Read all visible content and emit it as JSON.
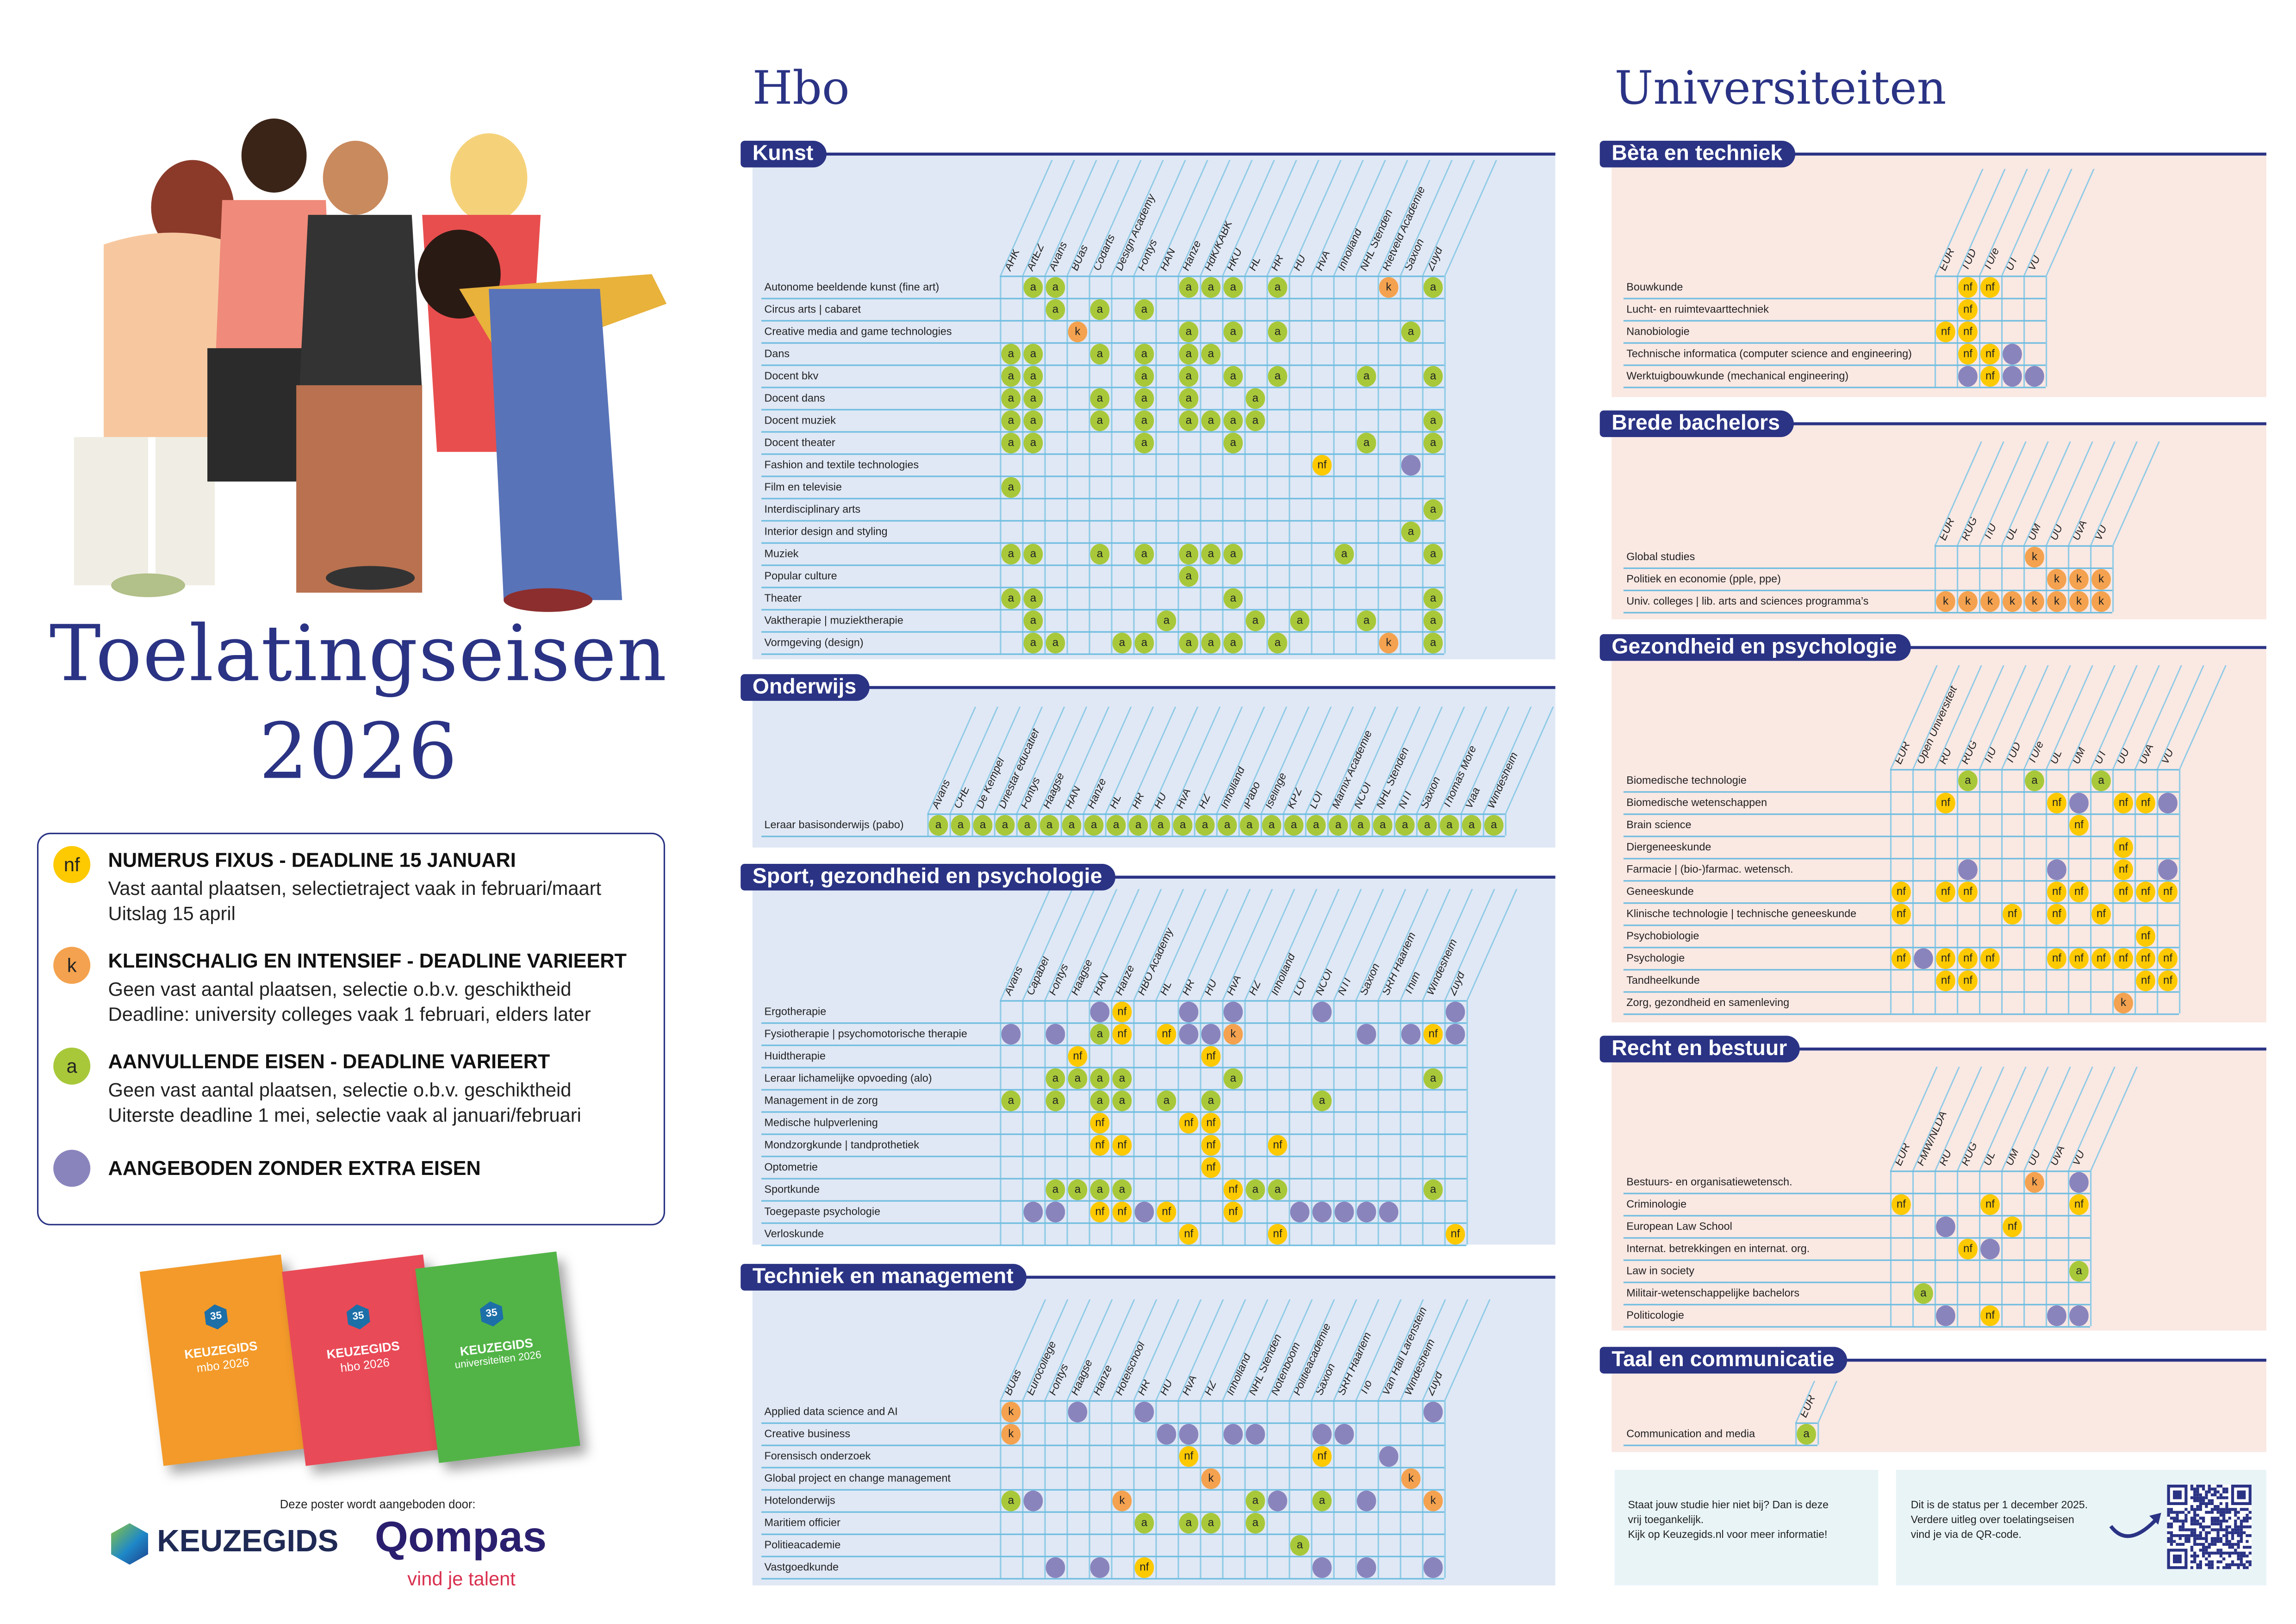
{
  "poster": {
    "title_line1": "Toelatingseisen",
    "title_line2": "2026",
    "hbo_heading": "Hbo",
    "uni_heading": "Universiteiten"
  },
  "colors": {
    "navy": "#2a3384",
    "nf": "#fdc900",
    "k": "#f4a24f",
    "a": "#a8c83a",
    "none": "#8a84bd",
    "hbo_panel": "#e0e8f5",
    "uni_panel": "#fae8e3"
  },
  "legend": [
    {
      "mark": "nf",
      "heading": "NUMERUS FIXUS - DEADLINE 15 JANUARI",
      "lines": [
        "Vast aantal plaatsen, selectietraject vaak in februari/maart",
        "Uitslag 15 april"
      ]
    },
    {
      "mark": "k",
      "heading": "KLEINSCHALIG EN INTENSIEF - DEADLINE VARIEERT",
      "lines": [
        "Geen vast aantal plaatsen, selectie o.b.v. geschiktheid",
        "Deadline: university colleges vaak 1 februari, elders later"
      ]
    },
    {
      "mark": "a",
      "heading": "AANVULLENDE EISEN - DEADLINE VARIEERT",
      "lines": [
        "Geen vast aantal plaatsen, selectie o.b.v. geschiktheid",
        "Uiterste deadline 1 mei, selectie vaak al januari/februari"
      ]
    },
    {
      "mark": "",
      "heading": "AANGEBODEN ZONDER EXTRA EISEN",
      "lines": []
    }
  ],
  "cell_codes": {
    "n": "nf",
    "k": "k",
    "a": "a",
    "p": "",
    ".": null
  },
  "hbo_sections": [
    {
      "title": "Kunst",
      "columns": [
        "AHK",
        "ArtEZ",
        "Avans",
        "BUas",
        "Codarts",
        "Design Academy",
        "Fontys",
        "HAN",
        "Hanze",
        "HdK/KABK",
        "HKU",
        "HL",
        "HR",
        "HU",
        "HvA",
        "Inholland",
        "NHL Stenden",
        "Rietveld Academie",
        "Saxion",
        "Zuyd"
      ],
      "rows": [
        {
          "label": "Autonome beeldende kunst (fine art)",
          "cells": ".aa.....aaa.a....k.a"
        },
        {
          "label": "Circus arts | cabaret",
          "cells": "..a.a.a............."
        },
        {
          "label": "Creative media and game technologies",
          "cells": "...k....a.a.a.....a."
        },
        {
          "label": "Dans",
          "cells": "aa..a.a.aa.........."
        },
        {
          "label": "Docent bkv",
          "cells": "aa....a.a.a.a...a..a"
        },
        {
          "label": "Docent dans",
          "cells": "aa..a.a.a..a........"
        },
        {
          "label": "Docent muziek",
          "cells": "aa..a.a.aaaa.......a"
        },
        {
          "label": "Docent theater",
          "cells": "aa....a...a.....a..a"
        },
        {
          "label": "Fashion and textile technologies",
          "cells": "..............n...p."
        },
        {
          "label": "Film en televisie",
          "cells": "a..................."
        },
        {
          "label": "Interdisciplinary arts",
          "cells": "...................a"
        },
        {
          "label": "Interior design and styling",
          "cells": "..................a."
        },
        {
          "label": "Muziek",
          "cells": "aa..a.a.aaa....a...a"
        },
        {
          "label": "Popular culture",
          "cells": "........a..........."
        },
        {
          "label": "Theater",
          "cells": "aa........a........a"
        },
        {
          "label": "Vaktherapie | muziektherapie",
          "cells": ".a.....a...a.a..a..a"
        },
        {
          "label": "Vormgeving (design)",
          "cells": ".aa..aa.aaa.a....k.a"
        }
      ]
    },
    {
      "title": "Onderwijs",
      "columns": [
        "Avans",
        "CHE",
        "De Kempel",
        "Driestar educatief",
        "Fontys",
        "Haagse",
        "HAN",
        "Hanze",
        "HL",
        "HR",
        "HU",
        "HvA",
        "HZ",
        "Inholland",
        "iPabo",
        "Iselinge",
        "KPZ",
        "LOI",
        "Marnix Academie",
        "NCOI",
        "NHL Stenden",
        "NTI",
        "Saxion",
        "Thomas More",
        "Viaa",
        "Windesheim"
      ],
      "rows": [
        {
          "label": "Leraar basisonderwijs (pabo)",
          "cells": "aaaaaaaaaaaaaaaaaaaaaaaaaa"
        }
      ]
    },
    {
      "title": "Sport, gezondheid en psychologie",
      "columns": [
        "Avans",
        "Capabel",
        "Fontys",
        "Haagse",
        "HAN",
        "Hanze",
        "HBO Academy",
        "HL",
        "HR",
        "HU",
        "HvA",
        "HZ",
        "Inholland",
        "LOI",
        "NCOI",
        "NTI",
        "Saxion",
        "SRH Haarlem",
        "Thim",
        "Windesheim",
        "Zuyd"
      ],
      "rows": [
        {
          "label": "Ergotherapie",
          "cells": "....pn..p.p...p.....p"
        },
        {
          "label": "Fysiotherapie | psychomotorische therapie",
          "cells": "p.p.an.nppk.....p.pnp"
        },
        {
          "label": "Huidtherapie",
          "cells": "...n.....n..........."
        },
        {
          "label": "Leraar lichamelijke opvoeding (alo)",
          "cells": "..aaaa....a........a."
        },
        {
          "label": "Management in de zorg",
          "cells": "a.a.aa.a.a....a......"
        },
        {
          "label": "Medische hulpverlening",
          "cells": "....n...nn..........."
        },
        {
          "label": "Mondzorgkunde | tandprothetiek",
          "cells": "....nn...n..n........"
        },
        {
          "label": "Optometrie",
          "cells": ".........n..........."
        },
        {
          "label": "Sportkunde",
          "cells": "..aaaa....naa......a."
        },
        {
          "label": "Toegepaste psychologie",
          "cells": ".pp.nnpn..n..ppppp..."
        },
        {
          "label": "Verloskunde",
          "cells": "........n...n.......n"
        }
      ]
    },
    {
      "title": "Techniek en management",
      "columns": [
        "BUas",
        "Eurocollege",
        "Fontys",
        "Haagse",
        "Hanze",
        "Hotelschool",
        "HR",
        "HU",
        "HvA",
        "HZ",
        "Inholland",
        "NHL Stenden",
        "Notenboom",
        "Politieacademie",
        "Saxion",
        "SRH Haarlem",
        "Tio",
        "Van Hall Larenstein",
        "Windesheim",
        "Zuyd"
      ],
      "rows": [
        {
          "label": "Applied data science and AI",
          "cells": "k..p..p............p"
        },
        {
          "label": "Creative business",
          "cells": "k......pp.pp..pp...."
        },
        {
          "label": "Forensisch onderzoek",
          "cells": "........n.....n..p.."
        },
        {
          "label": "Global project en change management",
          "cells": ".........k........k."
        },
        {
          "label": "Hotelonderwijs",
          "cells": "ap...k.....ap.a.p..k"
        },
        {
          "label": "Maritiem officier",
          "cells": "......a.aa.a........"
        },
        {
          "label": "Politieacademie",
          "cells": ".............a......"
        },
        {
          "label": "Vastgoedkunde",
          "cells": "..p.p.n.......p.p..p"
        }
      ]
    }
  ],
  "uni_sections": [
    {
      "title": "Bèta en techniek",
      "columns": [
        "EUR",
        "TUD",
        "TU/e",
        "UT",
        "VU"
      ],
      "rows": [
        {
          "label": "Bouwkunde",
          "cells": ".nn.."
        },
        {
          "label": "Lucht- en ruimtevaarttechniek",
          "cells": ".n..."
        },
        {
          "label": "Nanobiologie",
          "cells": "nn..."
        },
        {
          "label": "Technische informatica (computer science and engineering)",
          "cells": ".nnp."
        },
        {
          "label": "Werktuigbouwkunde (mechanical engineering)",
          "cells": ".pnpp"
        }
      ]
    },
    {
      "title": "Brede bachelors",
      "columns": [
        "EUR",
        "RUG",
        "TiU",
        "UL",
        "UM",
        "UU",
        "UvA",
        "VU"
      ],
      "rows": [
        {
          "label": "Global studies",
          "cells": "....k..."
        },
        {
          "label": "Politiek en economie (pple, ppe)",
          "cells": ".....kkk"
        },
        {
          "label": "Univ. colleges | lib. arts and sciences programma’s",
          "cells": "kkkkkkkk"
        }
      ]
    },
    {
      "title": "Gezondheid en psychologie",
      "columns": [
        "EUR",
        "Open Universiteit",
        "RU",
        "RUG",
        "TiU",
        "TUD",
        "TU/e",
        "UL",
        "UM",
        "UT",
        "UU",
        "UvA",
        "VU"
      ],
      "rows": [
        {
          "label": "Biomedische technologie",
          "cells": "...a..a..a..."
        },
        {
          "label": "Biomedische wetenschappen",
          "cells": "..n....np.nnp"
        },
        {
          "label": "Brain science",
          "cells": "........n...."
        },
        {
          "label": "Diergeneeskunde",
          "cells": "..........n.."
        },
        {
          "label": "Farmacie | (bio-)farmac. wetensch.",
          "cells": "...p...p..n.p"
        },
        {
          "label": "Geneeskunde",
          "cells": "n.nn...nn.nnn"
        },
        {
          "label": "Klinische technologie | technische geneeskunde",
          "cells": "n....n.n.n..."
        },
        {
          "label": "Psychobiologie",
          "cells": "...........n."
        },
        {
          "label": "Psychologie",
          "cells": "npnnn..nnnnnn"
        },
        {
          "label": "Tandheelkunde",
          "cells": "..nn.......nn"
        },
        {
          "label": "Zorg, gezondheid en samenleving",
          "cells": "..........k.."
        }
      ]
    },
    {
      "title": "Recht en bestuur",
      "columns": [
        "EUR",
        "FMW/NLDA",
        "RU",
        "RUG",
        "UL",
        "UM",
        "UU",
        "UvA",
        "VU"
      ],
      "rows": [
        {
          "label": "Bestuurs- en organisatiewetensch.",
          "cells": "......k.p"
        },
        {
          "label": "Criminologie",
          "cells": "n...n...n"
        },
        {
          "label": "European Law School",
          "cells": "..p..n..."
        },
        {
          "label": "Internat. betrekkingen en internat. org.",
          "cells": "...np...."
        },
        {
          "label": "Law in society",
          "cells": "........a"
        },
        {
          "label": "Militair-wetenschappelijke bachelors",
          "cells": ".a......."
        },
        {
          "label": "Politicologie",
          "cells": "..p.n..pp"
        }
      ]
    },
    {
      "title": "Taal en communicatie",
      "columns": [
        "EUR"
      ],
      "rows": [
        {
          "label": "Communication and media",
          "cells": "a"
        }
      ]
    }
  ],
  "info": {
    "box1": [
      "Staat jouw studie hier niet bij? Dan is deze",
      "vrij toegankelijk.",
      "Kijk op Keuzegids.nl voor meer informatie!"
    ],
    "box2": [
      "Dit is de status per 1 december 2025.",
      "Verdere uitleg over toelatingseisen",
      "vind je via de QR-code."
    ]
  },
  "books": [
    {
      "brand": "KEUZEGIDS",
      "edition": "mbo 2026",
      "badge": "35",
      "color": "#f39a2a"
    },
    {
      "brand": "KEUZEGIDS",
      "edition": "hbo 2026",
      "badge": "35",
      "color": "#e94a57"
    },
    {
      "brand": "KEUZEGIDS",
      "edition": "universiteiten 2026",
      "badge": "35",
      "color": "#52b447"
    }
  ],
  "footer": {
    "offered_by": "Deze poster wordt aangeboden door:",
    "logo_keuzegids": "KEUZEGIDS",
    "logo_qompas": "Qompas",
    "qompas_tagline": "vind je talent"
  }
}
